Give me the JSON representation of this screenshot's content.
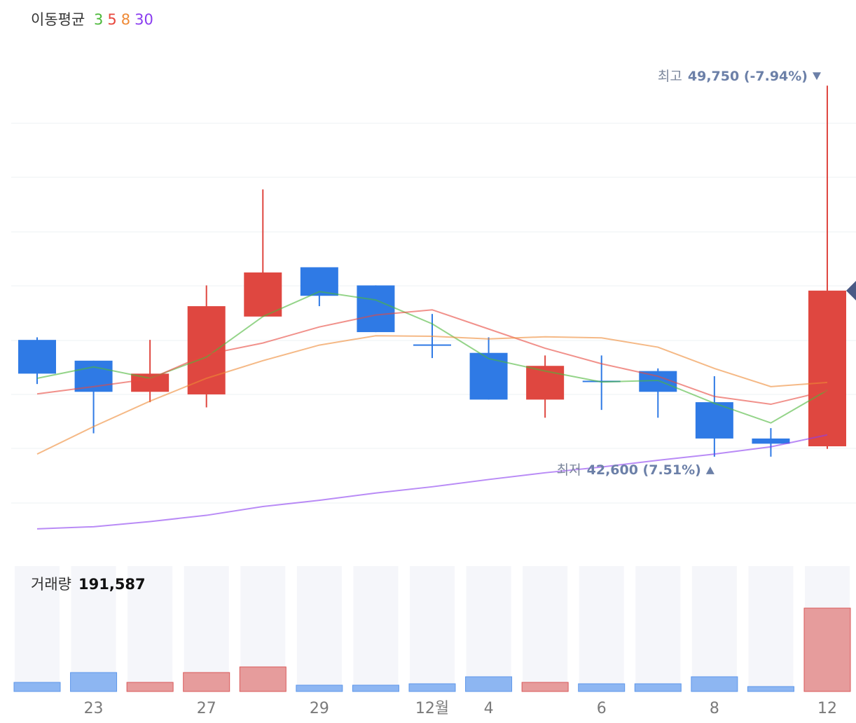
{
  "chart_data": {
    "type": "candlestick",
    "legend_title": "이동평균",
    "categories": [
      null,
      "23",
      null,
      "27",
      null,
      "29",
      null,
      "12월",
      "4",
      null,
      "6",
      null,
      "8",
      null,
      "12"
    ],
    "open": [
      44850,
      44450,
      43850,
      43800,
      45300,
      46250,
      45900,
      44750,
      44600,
      43700,
      44050,
      44250,
      43650,
      42950,
      42800
    ],
    "high": [
      44900,
      44450,
      44850,
      45900,
      47750,
      46250,
      45900,
      45350,
      44900,
      44550,
      44550,
      44300,
      44150,
      43150,
      49750
    ],
    "low": [
      44000,
      43050,
      43650,
      43550,
      45300,
      45500,
      45000,
      44500,
      43700,
      43350,
      43500,
      43350,
      42600,
      42600,
      42750
    ],
    "close": [
      44200,
      43850,
      44200,
      45500,
      46150,
      45700,
      45000,
      44750,
      43700,
      44350,
      44050,
      43850,
      42950,
      42850,
      45800
    ],
    "up_color": "#df4740",
    "down_color": "#2f7ae5",
    "ylim": [
      40870,
      50590
    ],
    "series": [
      {
        "name": "3",
        "color": "#4cb83a",
        "values": [
          44110,
          44330,
          44110,
          44520,
          45300,
          45780,
          45620,
          45160,
          44490,
          44250,
          44040,
          44070,
          43630,
          43250,
          43880
        ]
      },
      {
        "name": "5",
        "color": "#e8473d",
        "values": [
          43810,
          43950,
          44100,
          44570,
          44790,
          45100,
          45330,
          45430,
          45060,
          44690,
          44390,
          44150,
          43760,
          43610,
          43870
        ]
      },
      {
        "name": "8",
        "color": "#ef8a36",
        "values": [
          42650,
          43180,
          43670,
          44110,
          44450,
          44750,
          44930,
          44920,
          44870,
          44910,
          44890,
          44710,
          44300,
          43950,
          44030
        ]
      },
      {
        "name": "30",
        "color": "#8a3df0",
        "values": [
          41210,
          41250,
          41350,
          41470,
          41640,
          41760,
          41900,
          42020,
          42160,
          42290,
          42400,
          42530,
          42650,
          42790,
          43020
        ]
      }
    ],
    "annotations": [
      {
        "label": "최고",
        "value": 49750,
        "text": "49,750 (-7.94%)"
      },
      {
        "label": "최저",
        "value": 42600,
        "text": "42,600 (7.51%)"
      }
    ],
    "volume": {
      "label": "거래량",
      "values": [
        20900,
        43500,
        20900,
        43500,
        56400,
        14500,
        14500,
        17700,
        33800,
        20900,
        17700,
        17700,
        33800,
        11300,
        191587
      ],
      "value_labels": [
        null,
        null,
        null,
        null,
        null,
        null,
        null,
        null,
        null,
        null,
        null,
        null,
        null,
        null,
        "191,587"
      ],
      "ylim": [
        0,
        288200
      ]
    }
  }
}
